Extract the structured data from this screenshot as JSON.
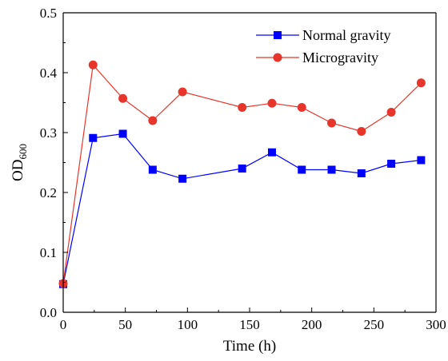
{
  "chart_data": {
    "type": "line",
    "title": "",
    "xlabel": "Time (h)",
    "ylabel_main": "OD",
    "ylabel_sub": "600",
    "xlim": [
      0,
      300
    ],
    "ylim": [
      0,
      0.5
    ],
    "xticks": [
      0,
      50,
      100,
      150,
      200,
      250,
      300
    ],
    "xtick_labels": [
      "0",
      "50",
      "100",
      "150",
      "200",
      "250",
      "300"
    ],
    "yticks": [
      0,
      0.1,
      0.2,
      0.3,
      0.4,
      0.5
    ],
    "ytick_labels": [
      "0.0",
      "0.1",
      "0.2",
      "0.3",
      "0.4",
      "0.5"
    ],
    "grid": false,
    "legend_position": "top-right",
    "series": [
      {
        "name": "Normal gravity",
        "color": "#0000ff",
        "marker": "square",
        "x": [
          0,
          24,
          48,
          72,
          96,
          144,
          168,
          192,
          216,
          240,
          264,
          288
        ],
        "y": [
          0.047,
          0.291,
          0.298,
          0.238,
          0.223,
          0.24,
          0.267,
          0.238,
          0.238,
          0.232,
          0.248,
          0.254
        ]
      },
      {
        "name": "Microgravity",
        "color": "#e8352b",
        "marker": "circle",
        "x": [
          0,
          24,
          48,
          72,
          96,
          144,
          168,
          192,
          216,
          240,
          264,
          288
        ],
        "y": [
          0.048,
          0.413,
          0.357,
          0.32,
          0.368,
          0.342,
          0.349,
          0.342,
          0.316,
          0.302,
          0.334,
          0.383
        ]
      }
    ]
  }
}
